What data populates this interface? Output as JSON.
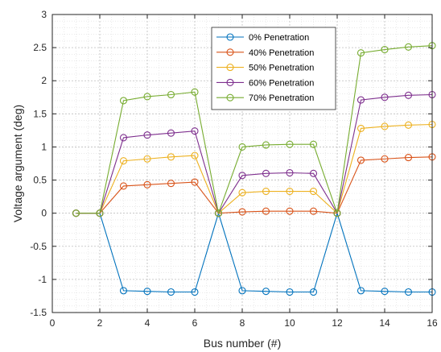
{
  "chart_data": {
    "type": "line",
    "xlabel": "Bus number (#)",
    "ylabel": "Voltage argument (deg)",
    "xlim": [
      0,
      16
    ],
    "ylim": [
      -1.5,
      3
    ],
    "xticks": [
      0,
      2,
      4,
      6,
      8,
      10,
      12,
      14,
      16
    ],
    "xtick_labels": [
      "0",
      "2",
      "4",
      "6",
      "8",
      "10",
      "12",
      "14",
      "16"
    ],
    "yticks": [
      -1.5,
      -1,
      -0.5,
      0,
      0.5,
      1,
      1.5,
      2,
      2.5,
      3
    ],
    "ytick_labels": [
      "-1.5",
      "-1",
      "-0.5",
      "0",
      "0.5",
      "1",
      "1.5",
      "2",
      "2.5",
      "3"
    ],
    "grid": true,
    "minor_grid": true,
    "legend_position": "top-center",
    "x": [
      1,
      2,
      3,
      4,
      5,
      6,
      7,
      8,
      9,
      10,
      11,
      12,
      13,
      14,
      15,
      16
    ],
    "series": [
      {
        "name": "0% Penetration",
        "color": "#0072BD",
        "values": [
          0,
          0,
          -1.17,
          -1.18,
          -1.19,
          -1.19,
          0,
          -1.17,
          -1.18,
          -1.19,
          -1.19,
          0,
          -1.17,
          -1.18,
          -1.19,
          -1.19
        ]
      },
      {
        "name": "40% Penetration",
        "color": "#D95319",
        "values": [
          0,
          0,
          0.41,
          0.43,
          0.45,
          0.47,
          0,
          0.02,
          0.03,
          0.03,
          0.03,
          0,
          0.8,
          0.82,
          0.84,
          0.85
        ]
      },
      {
        "name": "50% Penetration",
        "color": "#EDB120",
        "values": [
          0,
          0,
          0.79,
          0.82,
          0.85,
          0.87,
          0,
          0.31,
          0.33,
          0.33,
          0.33,
          0,
          1.28,
          1.31,
          1.33,
          1.34
        ]
      },
      {
        "name": "60% Penetration",
        "color": "#7E2F8E",
        "values": [
          0,
          0,
          1.14,
          1.18,
          1.21,
          1.24,
          0,
          0.57,
          0.6,
          0.61,
          0.6,
          0,
          1.71,
          1.75,
          1.78,
          1.79
        ]
      },
      {
        "name": "70% Penetration",
        "color": "#77AC30",
        "values": [
          0,
          0,
          1.7,
          1.76,
          1.79,
          1.83,
          0,
          1.0,
          1.03,
          1.04,
          1.04,
          0,
          2.42,
          2.47,
          2.51,
          2.53
        ]
      }
    ]
  }
}
